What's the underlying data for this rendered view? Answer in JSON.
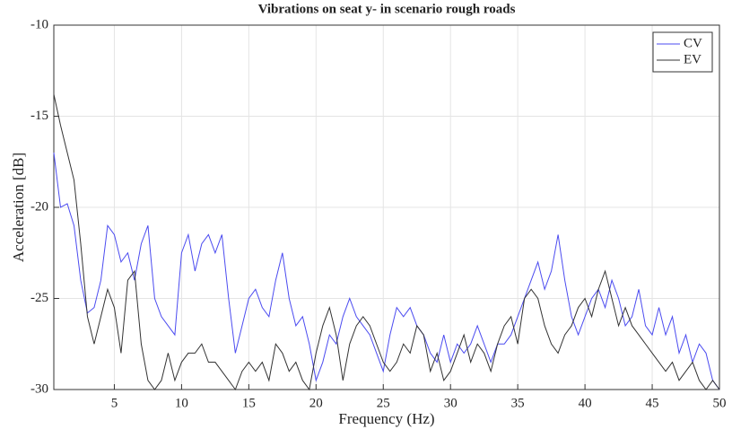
{
  "chart_data": {
    "type": "line",
    "title": "Vibrations on seat y- in scenario rough roads",
    "xlabel": "Frequency (Hz)",
    "ylabel": "Acceleration [dB]",
    "x": [
      0.5,
      1,
      1.5,
      2,
      2.5,
      3,
      3.5,
      4,
      4.5,
      5,
      5.5,
      6,
      6.5,
      7,
      7.5,
      8,
      8.5,
      9,
      9.5,
      10,
      10.5,
      11,
      11.5,
      12,
      12.5,
      13,
      13.5,
      14,
      14.5,
      15,
      15.5,
      16,
      16.5,
      17,
      17.5,
      18,
      18.5,
      19,
      19.5,
      20,
      20.5,
      21,
      21.5,
      22,
      22.5,
      23,
      23.5,
      24,
      24.5,
      25,
      25.5,
      26,
      26.5,
      27,
      27.5,
      28,
      28.5,
      29,
      29.5,
      30,
      30.5,
      31,
      31.5,
      32,
      32.5,
      33,
      33.5,
      34,
      34.5,
      35,
      35.5,
      36,
      36.5,
      37,
      37.5,
      38,
      38.5,
      39,
      39.5,
      40,
      40.5,
      41,
      41.5,
      42,
      42.5,
      43,
      43.5,
      44,
      44.5,
      45,
      45.5,
      46,
      46.5,
      47,
      47.5,
      48,
      48.5,
      49,
      49.5,
      50
    ],
    "series": [
      {
        "name": "CV",
        "color": "#4b4bf0",
        "values": [
          -17,
          -20,
          -19.8,
          -21,
          -24,
          -25.8,
          -25.5,
          -24,
          -21,
          -21.5,
          -23,
          -22.5,
          -24,
          -22,
          -21,
          -25,
          -26,
          -26.5,
          -27,
          -22.5,
          -21.5,
          -23.5,
          -22,
          -21.5,
          -22.5,
          -21.5,
          -25,
          -28,
          -26.5,
          -25,
          -24.5,
          -25.5,
          -26,
          -24,
          -22.5,
          -25,
          -26.5,
          -26,
          -27.5,
          -29.5,
          -28.5,
          -27,
          -27.5,
          -26,
          -25,
          -26,
          -26.5,
          -27,
          -28,
          -29,
          -27,
          -25.5,
          -26,
          -25.5,
          -26.5,
          -27,
          -28,
          -28.5,
          -27,
          -28.5,
          -27.5,
          -28,
          -27.5,
          -26.5,
          -27.5,
          -28.5,
          -27.5,
          -27.5,
          -27,
          -26,
          -25,
          -24,
          -23,
          -24.5,
          -23.5,
          -21.5,
          -24,
          -26,
          -27,
          -26,
          -25,
          -24.5,
          -25.5,
          -24,
          -25,
          -26.5,
          -26,
          -24.5,
          -26.5,
          -27,
          -25.5,
          -27,
          -26,
          -28,
          -27,
          -28.5,
          -27.5,
          -28,
          -29.5,
          -30
        ]
      },
      {
        "name": "EV",
        "color": "#333333",
        "values": [
          -13.8,
          -15.5,
          -17,
          -18.5,
          -22,
          -26,
          -27.5,
          -26,
          -24.5,
          -25.5,
          -28,
          -24,
          -23.5,
          -27.5,
          -29.5,
          -30,
          -29.5,
          -28,
          -29.5,
          -28.5,
          -28,
          -28,
          -27.5,
          -28.5,
          -28.5,
          -29,
          -29.5,
          -30,
          -29,
          -28.5,
          -29,
          -28.5,
          -29.5,
          -27.5,
          -28,
          -29,
          -28.5,
          -29.5,
          -30,
          -28,
          -26.5,
          -25.5,
          -27,
          -29.5,
          -27.5,
          -26.5,
          -26,
          -26.5,
          -27.5,
          -28.5,
          -29,
          -28.5,
          -27.5,
          -28,
          -26.5,
          -27,
          -29,
          -28,
          -29.5,
          -29,
          -28,
          -27,
          -28.5,
          -27.5,
          -28,
          -29,
          -27.5,
          -26.5,
          -26,
          -27.5,
          -25,
          -24.5,
          -25,
          -26.5,
          -27.5,
          -28,
          -27,
          -26.5,
          -25.5,
          -25,
          -26,
          -24.5,
          -23.5,
          -25,
          -26.5,
          -25.5,
          -26.5,
          -27,
          -27.5,
          -28,
          -28.5,
          -29,
          -28.5,
          -29.5,
          -29,
          -28.5,
          -29.5,
          -30,
          -29.5,
          -30
        ]
      }
    ],
    "xlim": [
      0.5,
      50
    ],
    "ylim": [
      -30,
      -10
    ],
    "xticks": [
      5,
      10,
      15,
      20,
      25,
      30,
      35,
      40,
      45,
      50
    ],
    "yticks": [
      -30,
      -25,
      -20,
      -15,
      -10
    ],
    "grid": true,
    "legend": "upper right"
  }
}
